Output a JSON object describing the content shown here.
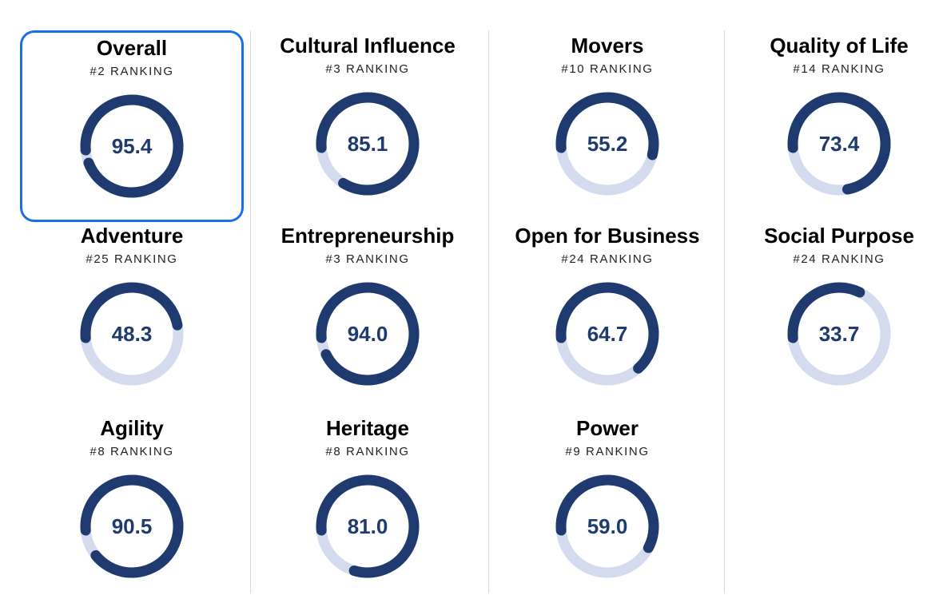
{
  "colors": {
    "accent": "#1f3a6e",
    "track": "#d5dbef",
    "selected_border": "#1a6fe8"
  },
  "rank_suffix": "RANKING",
  "rank_prefix": "#",
  "cards": [
    {
      "title": "Overall",
      "rank": 2,
      "score": "95.4",
      "selected": true
    },
    {
      "title": "Cultural Influence",
      "rank": 3,
      "score": "85.1"
    },
    {
      "title": "Movers",
      "rank": 10,
      "score": "55.2"
    },
    {
      "title": "Quality of Life",
      "rank": 14,
      "score": "73.4"
    },
    {
      "title": "Adventure",
      "rank": 25,
      "score": "48.3"
    },
    {
      "title": "Entrepreneurship",
      "rank": 3,
      "score": "94.0"
    },
    {
      "title": "Open for Business",
      "rank": 24,
      "score": "64.7"
    },
    {
      "title": "Social Purpose",
      "rank": 24,
      "score": "33.7"
    },
    {
      "title": "Agility",
      "rank": 8,
      "score": "90.5"
    },
    {
      "title": "Heritage",
      "rank": 8,
      "score": "81.0"
    },
    {
      "title": "Power",
      "rank": 9,
      "score": "59.0"
    }
  ]
}
